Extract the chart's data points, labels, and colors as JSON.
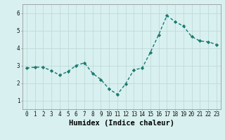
{
  "x": [
    0,
    1,
    2,
    3,
    4,
    5,
    6,
    7,
    8,
    9,
    10,
    11,
    12,
    13,
    14,
    15,
    16,
    17,
    18,
    19,
    20,
    21,
    22,
    23
  ],
  "y": [
    2.85,
    2.9,
    2.9,
    2.7,
    2.45,
    2.65,
    3.0,
    3.15,
    2.55,
    2.2,
    1.65,
    1.35,
    1.95,
    2.75,
    2.85,
    3.75,
    4.75,
    5.85,
    5.5,
    5.25,
    4.65,
    4.4,
    4.35,
    4.2
  ],
  "line_color": "#1a7a6e",
  "marker": "D",
  "marker_size": 2.2,
  "bg_color": "#d8f0f0",
  "grid_color": "#c0dada",
  "xlabel": "Humidex (Indice chaleur)",
  "xlim": [
    -0.5,
    23.5
  ],
  "ylim": [
    0.5,
    6.5
  ],
  "yticks": [
    1,
    2,
    3,
    4,
    5,
    6
  ],
  "xticks": [
    0,
    1,
    2,
    3,
    4,
    5,
    6,
    7,
    8,
    9,
    10,
    11,
    12,
    13,
    14,
    15,
    16,
    17,
    18,
    19,
    20,
    21,
    22,
    23
  ],
  "tick_label_size": 5.5,
  "xlabel_size": 7.5,
  "line_width": 1.0
}
